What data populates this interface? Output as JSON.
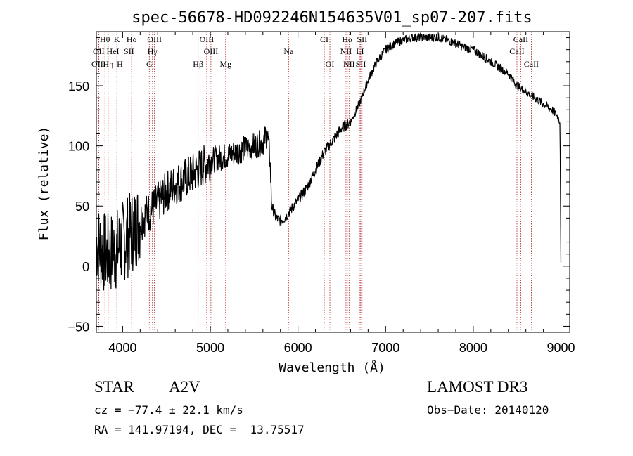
{
  "chart_data": {
    "type": "line",
    "title": "spec-56678-HD092246N154635V01_sp07-207.fits",
    "xlabel": "Wavelength (Å)",
    "ylabel": "Flux (relative)",
    "xlim": [
      3700,
      9100
    ],
    "ylim": [
      -55,
      195
    ],
    "xticks": [
      4000,
      5000,
      6000,
      7000,
      8000,
      9000
    ],
    "yticks": [
      -50,
      0,
      50,
      100,
      150
    ],
    "xtick_labels": [
      "4000",
      "5000",
      "6000",
      "7000",
      "8000",
      "9000"
    ],
    "ytick_labels": [
      "−50",
      "0",
      "50",
      "100",
      "150"
    ],
    "series": [
      {
        "name": "spectrum",
        "x": [
          3700,
          3750,
          3800,
          3850,
          3900,
          3950,
          4000,
          4100,
          4200,
          4300,
          4400,
          4500,
          4600,
          4700,
          4800,
          4900,
          5000,
          5100,
          5200,
          5300,
          5400,
          5500,
          5600,
          5650,
          5680,
          5700,
          5750,
          5800,
          5850,
          5900,
          6000,
          6100,
          6200,
          6300,
          6400,
          6500,
          6560,
          6600,
          6700,
          6800,
          6900,
          7000,
          7100,
          7200,
          7300,
          7400,
          7500,
          7600,
          7700,
          7800,
          7900,
          8000,
          8100,
          8200,
          8300,
          8400,
          8500,
          8600,
          8700,
          8800,
          8900,
          8960,
          8990,
          9000
        ],
        "y": [
          20,
          15,
          10,
          10,
          12,
          15,
          20,
          28,
          38,
          45,
          52,
          62,
          68,
          72,
          77,
          82,
          88,
          90,
          92,
          95,
          98,
          100,
          103,
          110,
          90,
          50,
          40,
          38,
          40,
          45,
          55,
          65,
          80,
          95,
          105,
          115,
          118,
          120,
          135,
          155,
          170,
          180,
          185,
          188,
          190,
          190,
          190,
          190,
          188,
          185,
          182,
          180,
          175,
          170,
          165,
          160,
          150,
          145,
          140,
          135,
          130,
          125,
          120,
          0
        ]
      }
    ],
    "line_markers": [
      {
        "name": "Hθ",
        "x": 3798,
        "row": 1
      },
      {
        "name": "K",
        "x": 3934,
        "row": 1
      },
      {
        "name": "Hδ",
        "x": 4102,
        "row": 1
      },
      {
        "name": "OIII",
        "x": 4363,
        "row": 1
      },
      {
        "name": "OIII",
        "x": 4959,
        "row": 1
      },
      {
        "name": "CI",
        "x": 6300,
        "row": 1
      },
      {
        "name": "Hα",
        "x": 6563,
        "row": 1
      },
      {
        "name": "SII",
        "x": 6731,
        "row": 1
      },
      {
        "name": "CaII",
        "x": 8542,
        "row": 1
      },
      {
        "name": "OII",
        "x": 3727,
        "row": 2
      },
      {
        "name": "HeI",
        "x": 3889,
        "row": 2
      },
      {
        "name": "SII",
        "x": 4072,
        "row": 2
      },
      {
        "name": "Hγ",
        "x": 4340,
        "row": 2
      },
      {
        "name": "OIII",
        "x": 5007,
        "row": 2
      },
      {
        "name": "Na",
        "x": 5893,
        "row": 2
      },
      {
        "name": "NII",
        "x": 6548,
        "row": 2
      },
      {
        "name": "LI",
        "x": 6708,
        "row": 2
      },
      {
        "name": "CaII",
        "x": 8498,
        "row": 2
      },
      {
        "name": "OIII",
        "x": 3727,
        "row": 3
      },
      {
        "name": "Hη",
        "x": 3835,
        "row": 3
      },
      {
        "name": "H",
        "x": 3968,
        "row": 3
      },
      {
        "name": "G",
        "x": 4304,
        "row": 3
      },
      {
        "name": "Hβ",
        "x": 4861,
        "row": 3
      },
      {
        "name": "Mg",
        "x": 5175,
        "row": 3
      },
      {
        "name": "OI",
        "x": 6364,
        "row": 3
      },
      {
        "name": "NII",
        "x": 6583,
        "row": 3
      },
      {
        "name": "SII",
        "x": 6717,
        "row": 3
      },
      {
        "name": "CaII",
        "x": 8662,
        "row": 3
      }
    ],
    "marker_color": "#b22222"
  },
  "info": {
    "object_class": "STAR",
    "subclass": "A2V",
    "survey": "LAMOST DR3",
    "redshift": "cz = −77.4 ± 22.1 km/s",
    "obs_date": "Obs−Date: 20140120",
    "coords": "RA = 141.97194, DEC =  13.75517"
  }
}
